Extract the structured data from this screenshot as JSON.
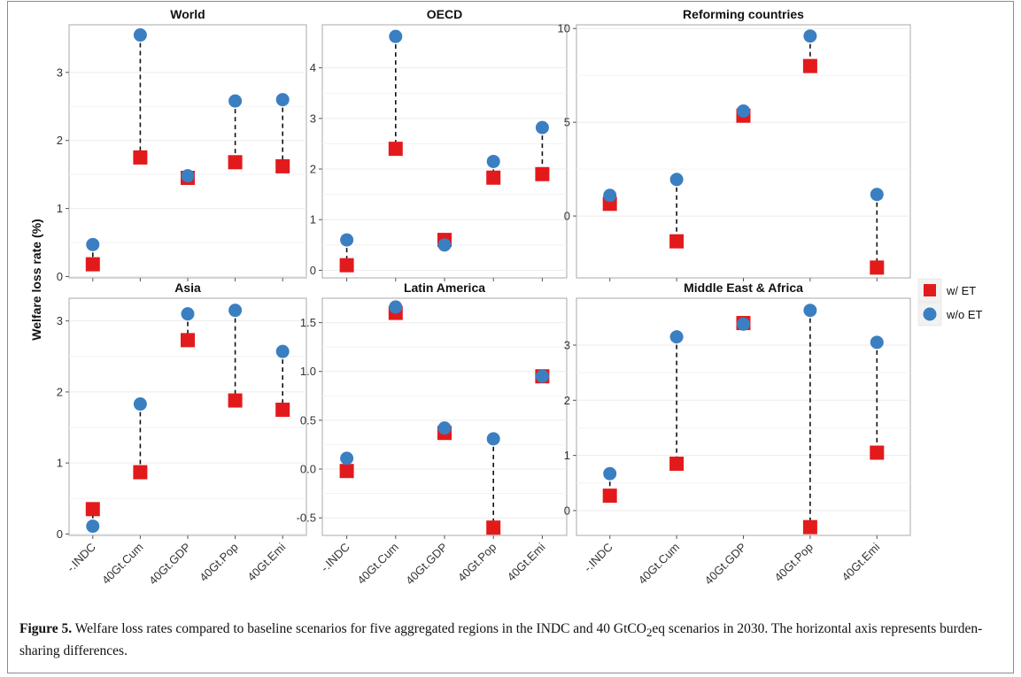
{
  "caption": {
    "label": "Figure 5.",
    "text_a": " Welfare loss rates compared to baseline scenarios for five aggregated regions in the INDC and 40 GtCO",
    "sub": "2",
    "text_b": "eq scenarios in 2030. The horizontal axis represents burden-sharing differences."
  },
  "ylabel": "Welfare loss rate (%)",
  "legend": [
    {
      "label": "w/ ET",
      "color": "#e31a1c",
      "shape": "square"
    },
    {
      "label": "w/o ET",
      "color": "#3a7fc1",
      "shape": "circle"
    }
  ],
  "chart_data": [
    {
      "type": "dumbbell",
      "title": "World",
      "categories": [
        "-.INDC",
        "40Gt.Cum",
        "40Gt.GDP",
        "40Gt.Pop",
        "40Gt.Emi"
      ],
      "series": [
        {
          "name": "w/ ET",
          "values": [
            0.18,
            1.75,
            1.45,
            1.68,
            1.62
          ]
        },
        {
          "name": "w/o ET",
          "values": [
            0.47,
            3.55,
            1.48,
            2.58,
            2.6
          ]
        }
      ],
      "ylim": [
        -0.02,
        3.7
      ],
      "yticks": [
        0,
        1,
        2,
        3
      ],
      "ytick_labels": [
        "0",
        "1",
        "2",
        "3"
      ],
      "show_xticks": false
    },
    {
      "type": "dumbbell",
      "title": "OECD",
      "categories": [
        "-.INDC",
        "40Gt.Cum",
        "40Gt.GDP",
        "40Gt.Pop",
        "40Gt.Emi"
      ],
      "series": [
        {
          "name": "w/ ET",
          "values": [
            0.1,
            2.4,
            0.6,
            1.83,
            1.9
          ]
        },
        {
          "name": "w/o ET",
          "values": [
            0.6,
            4.62,
            0.5,
            2.15,
            2.82
          ]
        }
      ],
      "ylim": [
        -0.15,
        4.85
      ],
      "yticks": [
        0,
        1,
        2,
        3,
        4
      ],
      "ytick_labels": [
        "0",
        "1",
        "2",
        "3",
        "4"
      ],
      "show_xticks": false
    },
    {
      "type": "dumbbell",
      "title": "Reforming countries",
      "categories": [
        "-.INDC",
        "40Gt.Cum",
        "40Gt.GDP",
        "40Gt.Pop",
        "40Gt.Emi"
      ],
      "series": [
        {
          "name": "w/ ET",
          "values": [
            0.65,
            -1.35,
            5.35,
            8.0,
            -2.75
          ]
        },
        {
          "name": "w/o ET",
          "values": [
            1.1,
            1.95,
            5.6,
            9.6,
            1.15
          ]
        }
      ],
      "ylim": [
        -3.3,
        10.2
      ],
      "yticks": [
        0,
        5,
        10
      ],
      "ytick_labels": [
        "0",
        "5",
        "10"
      ],
      "show_xticks": false
    },
    {
      "type": "dumbbell",
      "title": "Asia",
      "categories": [
        "-.INDC",
        "40Gt.Cum",
        "40Gt.GDP",
        "40Gt.Pop",
        "40Gt.Emi"
      ],
      "series": [
        {
          "name": "w/ ET",
          "values": [
            0.35,
            0.87,
            2.73,
            1.88,
            1.75
          ]
        },
        {
          "name": "w/o ET",
          "values": [
            0.11,
            1.83,
            3.1,
            3.15,
            2.57
          ]
        }
      ],
      "ylim": [
        -0.02,
        3.32
      ],
      "yticks": [
        0,
        1,
        2,
        3
      ],
      "ytick_labels": [
        "0",
        "1",
        "2",
        "3"
      ],
      "show_xticks": true
    },
    {
      "type": "dumbbell",
      "title": "Latin America",
      "categories": [
        "-.INDC",
        "40Gt.Cum",
        "40Gt.GDP",
        "40Gt.Pop",
        "40Gt.Emi"
      ],
      "series": [
        {
          "name": "w/ ET",
          "values": [
            -0.02,
            1.6,
            0.37,
            -0.6,
            0.95
          ]
        },
        {
          "name": "w/o ET",
          "values": [
            0.11,
            1.66,
            0.42,
            0.31,
            0.95
          ]
        }
      ],
      "ylim": [
        -0.68,
        1.75
      ],
      "yticks": [
        -0.5,
        0,
        0.5,
        1.0,
        1.5
      ],
      "ytick_labels": [
        "-0.5",
        "0.0",
        "0.5",
        "1.0",
        "1.5"
      ],
      "show_xticks": true
    },
    {
      "type": "dumbbell",
      "title": "Middle East & Africa",
      "categories": [
        "-.INDC",
        "40Gt.Cum",
        "40Gt.GDP",
        "40Gt.Pop",
        "40Gt.Emi"
      ],
      "series": [
        {
          "name": "w/ ET",
          "values": [
            0.27,
            0.85,
            3.4,
            -0.3,
            1.05
          ]
        },
        {
          "name": "w/o ET",
          "values": [
            0.67,
            3.15,
            3.38,
            3.63,
            3.05
          ]
        }
      ],
      "ylim": [
        -0.45,
        3.85
      ],
      "yticks": [
        0,
        1,
        2,
        3
      ],
      "ytick_labels": [
        "0",
        "1",
        "2",
        "3"
      ],
      "show_xticks": true
    }
  ]
}
